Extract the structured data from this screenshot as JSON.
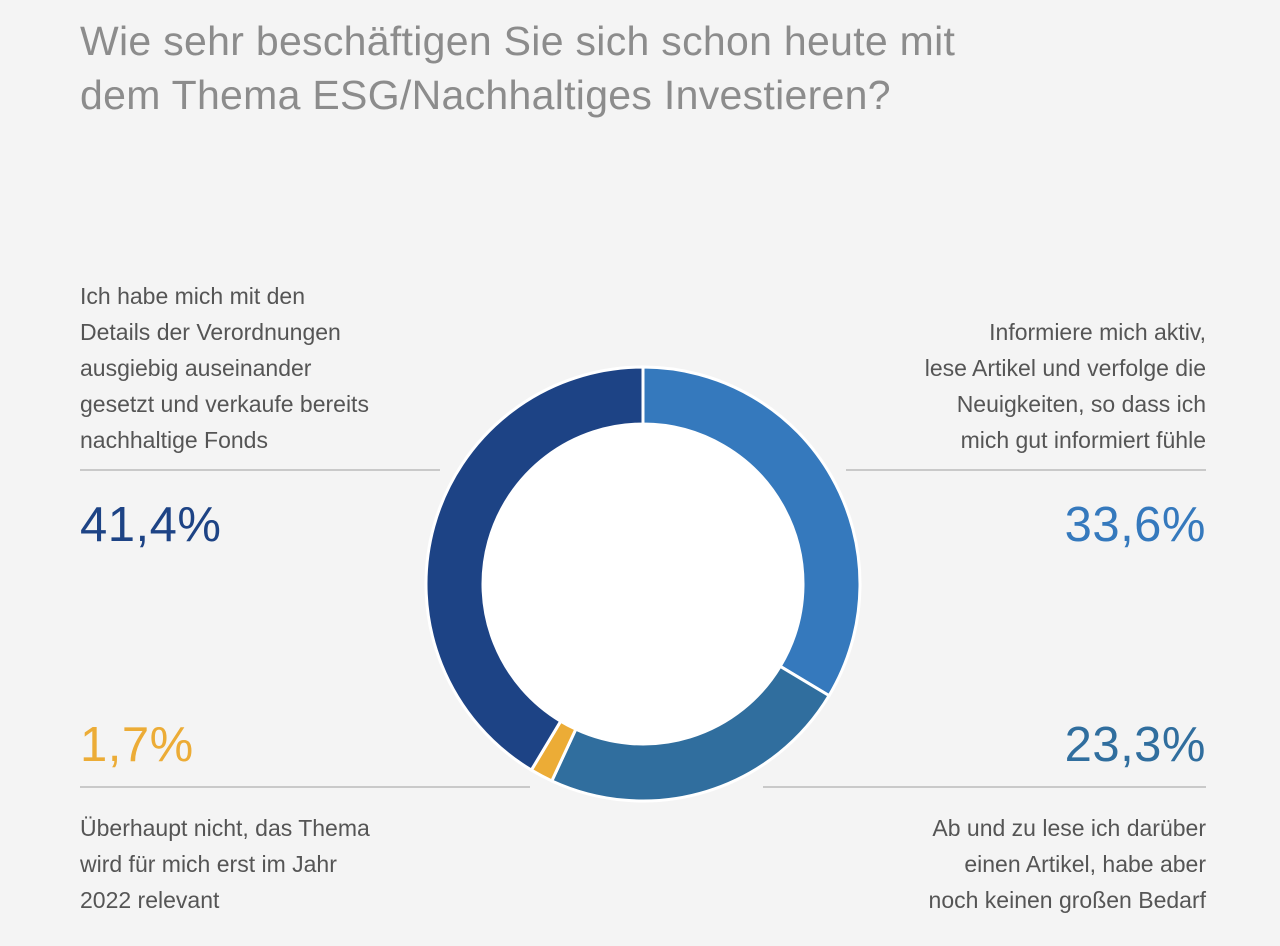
{
  "title_lines": [
    "Wie sehr beschäftigen Sie sich schon heute mit",
    "dem Thema ESG/Nachhaltiges Investieren?"
  ],
  "segments": {
    "detailed": {
      "label_lines": [
        "Ich habe mich mit den",
        "Details der Verordnungen",
        "ausgiebig auseinander",
        "gesetzt und verkaufe bereits",
        "nachhaltige Fonds"
      ],
      "value_text": "41,4%",
      "color": "#1d4385"
    },
    "active": {
      "label_lines": [
        "Informiere mich aktiv,",
        "lese Artikel und verfolge die",
        "Neuigkeiten, so dass ich",
        "mich gut informiert fühle"
      ],
      "value_text": "33,6%",
      "color": "#3579bd"
    },
    "occasional": {
      "label_lines": [
        "Ab und zu lese ich darüber",
        "einen Artikel, habe aber",
        "noch keinen großen Bedarf"
      ],
      "value_text": "23,3%",
      "color": "#306e9e"
    },
    "not_at_all": {
      "label_lines": [
        "Überhaupt nicht, das Thema",
        "wird für mich erst im Jahr",
        "2022 relevant"
      ],
      "value_text": "1,7%",
      "color": "#ecac36"
    }
  },
  "chart_data": {
    "type": "pie",
    "title": "Wie sehr beschäftigen Sie sich schon heute mit dem Thema ESG/Nachhaltiges Investieren?",
    "categories": [
      "Informiere mich aktiv, lese Artikel und verfolge die Neuigkeiten, so dass ich mich gut informiert fühle",
      "Ab und zu lese ich darüber einen Artikel, habe aber noch keinen großen Bedarf",
      "Überhaupt nicht, das Thema wird für mich erst im Jahr 2022 relevant",
      "Ich habe mich mit den Details der Verordnungen ausgiebig auseinander gesetzt und verkaufe bereits nachhaltige Fonds"
    ],
    "values": [
      33.6,
      23.3,
      1.7,
      41.4
    ],
    "colors": [
      "#3579bd",
      "#306e9e",
      "#ecac36",
      "#1d4385"
    ],
    "unit": "%",
    "style": "donut",
    "start": "top",
    "direction": "clockwise"
  }
}
